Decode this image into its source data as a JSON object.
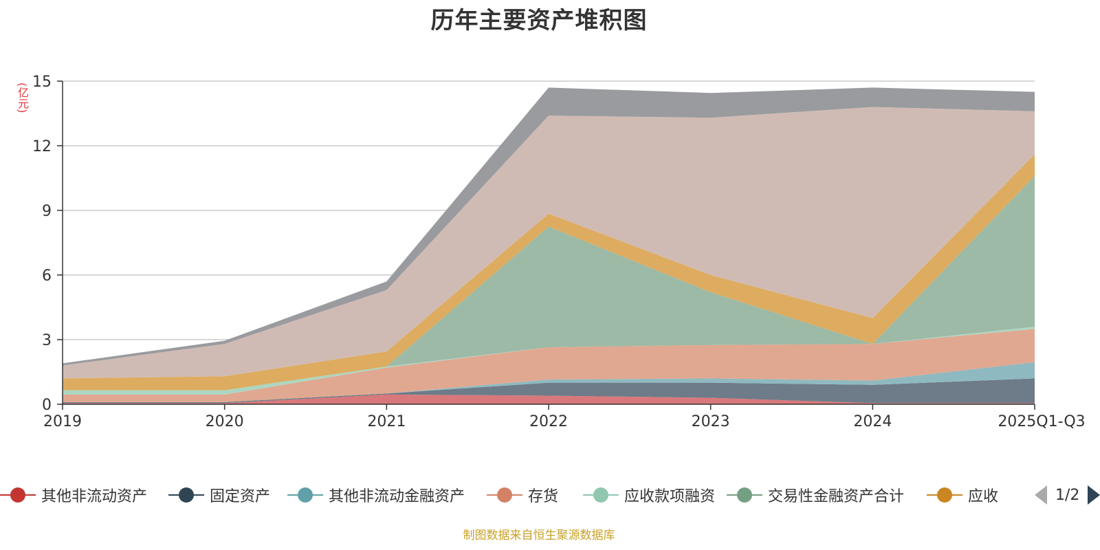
{
  "chart_data": {
    "type": "area",
    "stacked": true,
    "title": "历年主要资产堆积图",
    "unit_label": "(亿元)",
    "categories": [
      "2019",
      "2020",
      "2021",
      "2022",
      "2023",
      "2024",
      "2025Q1-Q3"
    ],
    "ylim": [
      0,
      15
    ],
    "yticks": [
      "0",
      "3",
      "6",
      "9",
      "12",
      "15"
    ],
    "grid": true,
    "legend_position": "bottom",
    "series": [
      {
        "name": "其他非流动资产",
        "color": "#c23531",
        "area_color": "#d9787a",
        "values": [
          0.05,
          0.05,
          0.45,
          0.4,
          0.3,
          0.05,
          0.05
        ]
      },
      {
        "name": "固定资产",
        "color": "#2f4554",
        "area_color": "#6e7b88",
        "values": [
          0.05,
          0.05,
          0.05,
          0.6,
          0.7,
          0.85,
          1.15
        ]
      },
      {
        "name": "其他非流动金融资产",
        "color": "#61a0a8",
        "area_color": "#8fb9c0",
        "values": [
          0.0,
          0.0,
          0.0,
          0.15,
          0.2,
          0.2,
          0.75
        ]
      },
      {
        "name": "存货",
        "color": "#d48265",
        "area_color": "#e0a891",
        "values": [
          0.35,
          0.35,
          1.2,
          1.5,
          1.55,
          1.7,
          1.55
        ]
      },
      {
        "name": "应收款项融资",
        "color": "#91c7ae",
        "area_color": "#acd6c1",
        "values": [
          0.2,
          0.2,
          0.05,
          0.0,
          0.0,
          0.0,
          0.1
        ]
      },
      {
        "name": "交易性金融资产合计",
        "color": "#749f83",
        "area_color": "#9cbaa6",
        "values": [
          0.0,
          0.0,
          0.0,
          5.6,
          2.45,
          0.0,
          7.0
        ]
      },
      {
        "name": "应收",
        "color": "#ca8622",
        "area_color": "#ddac60",
        "values": [
          0.55,
          0.65,
          0.7,
          0.6,
          0.8,
          1.2,
          1.0
        ]
      },
      {
        "name": "",
        "color": "#bda29a",
        "area_color": "#d0bbb4",
        "values": [
          0.6,
          1.5,
          2.85,
          4.55,
          7.3,
          9.8,
          2.0
        ]
      },
      {
        "name": "",
        "color": "#6e7074",
        "area_color": "#9a9b9f",
        "values": [
          0.1,
          0.15,
          0.4,
          1.3,
          1.15,
          0.9,
          0.9
        ]
      }
    ]
  },
  "legend": {
    "pager_text": "1/2",
    "prev_icon": "triangle-left-icon",
    "next_icon": "triangle-right-icon"
  },
  "source_note": "制图数据来自恒生聚源数据库"
}
